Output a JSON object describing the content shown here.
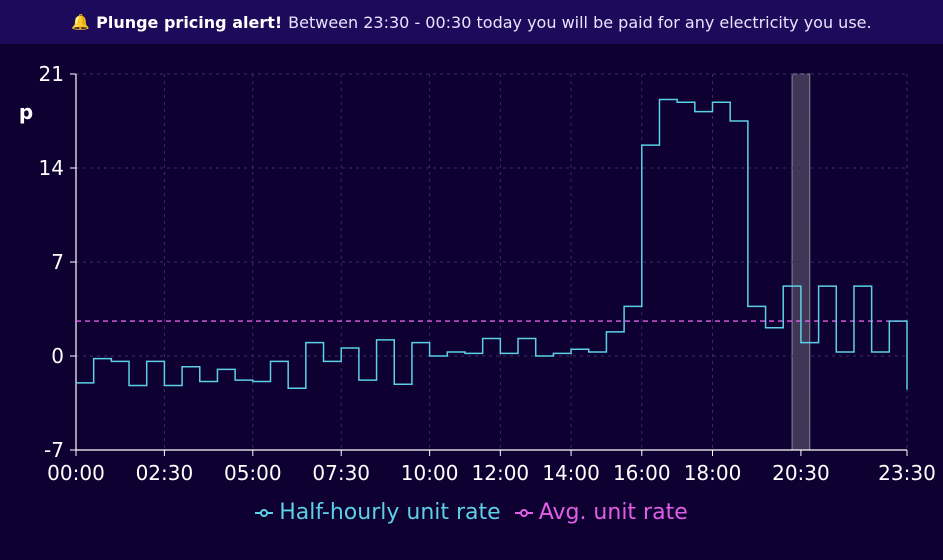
{
  "alert": {
    "icon": "bell-icon",
    "title": "Plunge pricing alert!",
    "message": "Between 23:30 - 00:30 today you will be paid for any electricity you use."
  },
  "chart_data": {
    "type": "line",
    "step": true,
    "ylabel": "p",
    "ylim": [
      -7,
      21
    ],
    "yticks": [
      "21",
      "14",
      "7",
      "0",
      "-7"
    ],
    "xticks": [
      "00:00",
      "02:30",
      "05:00",
      "07:30",
      "10:00",
      "12:00",
      "14:00",
      "16:00",
      "18:00",
      "20:30",
      "23:30"
    ],
    "x": [
      "00:00",
      "00:30",
      "01:00",
      "01:30",
      "02:00",
      "02:30",
      "03:00",
      "03:30",
      "04:00",
      "04:30",
      "05:00",
      "05:30",
      "06:00",
      "06:30",
      "07:00",
      "07:30",
      "08:00",
      "08:30",
      "09:00",
      "09:30",
      "10:00",
      "10:30",
      "11:00",
      "11:30",
      "12:00",
      "12:30",
      "13:00",
      "13:30",
      "14:00",
      "14:30",
      "15:00",
      "15:30",
      "16:00",
      "16:30",
      "17:00",
      "17:30",
      "18:00",
      "18:30",
      "19:00",
      "19:30",
      "20:00",
      "20:30",
      "21:00",
      "21:30",
      "22:00",
      "22:30",
      "23:00",
      "23:30"
    ],
    "series": [
      {
        "name": "Half-hourly unit rate",
        "color": "#5cd0e6",
        "values": [
          -2.0,
          -0.2,
          -0.4,
          -2.2,
          -0.4,
          -2.2,
          -0.8,
          -1.9,
          -1.0,
          -1.8,
          -1.9,
          -0.4,
          -2.4,
          1.0,
          -0.4,
          0.6,
          -1.8,
          1.2,
          -2.1,
          1.0,
          0.0,
          0.3,
          0.2,
          1.3,
          0.2,
          1.3,
          0.0,
          0.2,
          0.5,
          0.3,
          1.8,
          3.7,
          15.7,
          19.1,
          18.9,
          18.2,
          18.9,
          17.5,
          3.7,
          2.1,
          5.2,
          1.0,
          5.2,
          0.3,
          5.2,
          0.3,
          2.6,
          -2.5
        ]
      },
      {
        "name": "Avg. unit rate",
        "color": "#e25ee8",
        "value": 2.6
      }
    ],
    "highlight": {
      "x": "20:30",
      "color": "#6a6478"
    },
    "grid": true,
    "legend": "bottom-center"
  },
  "legend": {
    "items": [
      "Half-hourly unit rate",
      "Avg. unit rate"
    ]
  }
}
